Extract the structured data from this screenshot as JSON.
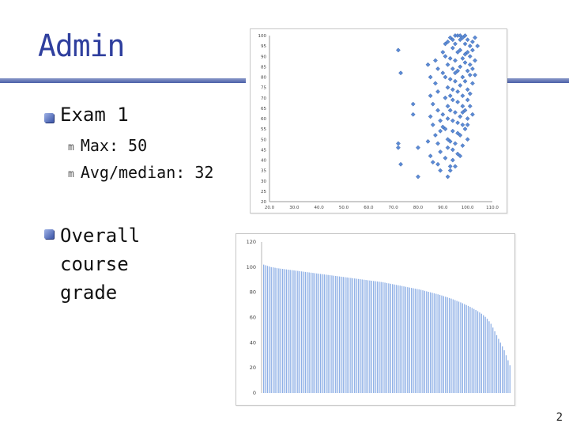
{
  "slide": {
    "title": "Admin",
    "bullets": [
      {
        "label": "Exam 1",
        "sub": [
          {
            "marker": "m",
            "text": "Max: 50"
          },
          {
            "marker": "m",
            "text": "Avg/median: 32"
          }
        ]
      },
      {
        "label": "Overall course grade",
        "sub": []
      }
    ],
    "page_number": "2"
  },
  "colors": {
    "title": "#2f3f9e",
    "rule": "#4a5fa8",
    "point": "#5b8bd6",
    "bar": "#8fb0e6"
  },
  "chart_data": [
    {
      "type": "scatter",
      "title": "",
      "xlabel": "",
      "ylabel": "",
      "xlim": [
        20,
        110
      ],
      "ylim": [
        20,
        100
      ],
      "x_ticks": [
        "20.0",
        "30.0",
        "40.0",
        "50.0",
        "60.0",
        "70.0",
        "80.0",
        "90.0",
        "100.0",
        "110.0"
      ],
      "y_ticks": [
        "20",
        "25",
        "30",
        "35",
        "40",
        "45",
        "50",
        "55",
        "60",
        "65",
        "70",
        "75",
        "80",
        "85",
        "90",
        "95",
        "100"
      ],
      "points": [
        [
          72,
          93
        ],
        [
          73,
          82
        ],
        [
          72,
          48
        ],
        [
          72,
          46
        ],
        [
          73,
          38
        ],
        [
          80,
          46
        ],
        [
          80,
          32
        ],
        [
          78,
          67
        ],
        [
          78,
          62
        ],
        [
          84,
          86
        ],
        [
          85,
          80
        ],
        [
          85,
          71
        ],
        [
          86,
          67
        ],
        [
          85,
          61
        ],
        [
          86,
          57
        ],
        [
          87,
          52
        ],
        [
          84,
          49
        ],
        [
          85,
          42
        ],
        [
          86,
          39
        ],
        [
          87,
          88
        ],
        [
          88,
          84
        ],
        [
          87,
          77
        ],
        [
          88,
          73
        ],
        [
          88,
          64
        ],
        [
          89,
          59
        ],
        [
          89,
          54
        ],
        [
          88,
          48
        ],
        [
          89,
          44
        ],
        [
          88,
          38
        ],
        [
          89,
          35
        ],
        [
          90,
          62
        ],
        [
          90,
          56
        ],
        [
          90,
          82
        ],
        [
          90,
          92
        ],
        [
          91,
          96
        ],
        [
          91,
          90
        ],
        [
          92,
          86
        ],
        [
          91,
          80
        ],
        [
          92,
          75
        ],
        [
          91,
          70
        ],
        [
          92,
          66
        ],
        [
          92,
          60
        ],
        [
          91,
          55
        ],
        [
          92,
          50
        ],
        [
          92,
          46
        ],
        [
          91,
          41
        ],
        [
          93,
          37
        ],
        [
          92,
          32
        ],
        [
          93,
          99
        ],
        [
          94,
          94
        ],
        [
          93,
          89
        ],
        [
          94,
          84
        ],
        [
          93,
          79
        ],
        [
          94,
          74
        ],
        [
          94,
          69
        ],
        [
          93,
          64
        ],
        [
          94,
          59
        ],
        [
          94,
          54
        ],
        [
          93,
          49
        ],
        [
          94,
          45
        ],
        [
          94,
          40
        ],
        [
          93,
          35
        ],
        [
          95,
          100
        ],
        [
          95,
          96
        ],
        [
          96,
          92
        ],
        [
          95,
          88
        ],
        [
          96,
          83
        ],
        [
          95,
          78
        ],
        [
          96,
          73
        ],
        [
          96,
          68
        ],
        [
          95,
          63
        ],
        [
          96,
          58
        ],
        [
          96,
          53
        ],
        [
          95,
          48
        ],
        [
          96,
          43
        ],
        [
          95,
          37
        ],
        [
          97,
          98
        ],
        [
          97,
          93
        ],
        [
          98,
          89
        ],
        [
          97,
          85
        ],
        [
          98,
          80
        ],
        [
          97,
          76
        ],
        [
          98,
          71
        ],
        [
          98,
          66
        ],
        [
          97,
          61
        ],
        [
          98,
          57
        ],
        [
          97,
          52
        ],
        [
          98,
          47
        ],
        [
          97,
          42
        ],
        [
          99,
          100
        ],
        [
          99,
          96
        ],
        [
          100,
          92
        ],
        [
          99,
          87
        ],
        [
          100,
          83
        ],
        [
          99,
          78
        ],
        [
          100,
          74
        ],
        [
          100,
          69
        ],
        [
          99,
          64
        ],
        [
          100,
          60
        ],
        [
          99,
          55
        ],
        [
          100,
          98
        ],
        [
          101,
          95
        ],
        [
          101,
          90
        ],
        [
          101,
          86
        ],
        [
          101,
          81
        ],
        [
          102,
          77
        ],
        [
          101,
          72
        ],
        [
          102,
          97
        ],
        [
          102,
          93
        ],
        [
          103,
          99
        ],
        [
          103,
          88
        ],
        [
          102,
          84
        ],
        [
          104,
          95
        ],
        [
          103,
          81
        ],
        [
          101,
          66
        ],
        [
          102,
          62
        ],
        [
          100,
          57
        ],
        [
          98,
          99
        ],
        [
          96,
          100
        ],
        [
          94,
          98
        ],
        [
          92,
          97
        ],
        [
          97,
          100
        ],
        [
          99,
          91
        ],
        [
          95,
          82
        ],
        [
          93,
          71
        ],
        [
          98,
          63
        ],
        [
          100,
          50
        ]
      ]
    },
    {
      "type": "bar",
      "title": "",
      "xlabel": "",
      "ylabel": "",
      "ylim": [
        0,
        120
      ],
      "y_ticks": [
        "0",
        "20",
        "40",
        "60",
        "80",
        "100",
        "120"
      ],
      "values": [
        102,
        101.5,
        101,
        100.5,
        100,
        99.8,
        99.5,
        99.2,
        99,
        98.8,
        98.6,
        98.4,
        98.2,
        98,
        97.8,
        97.6,
        97.4,
        97.2,
        97,
        96.8,
        96.6,
        96.4,
        96.2,
        96,
        95.8,
        95.6,
        95.4,
        95.2,
        95,
        94.8,
        94.6,
        94.4,
        94.2,
        94,
        93.8,
        93.6,
        93.4,
        93.2,
        93,
        92.8,
        92.6,
        92.4,
        92.2,
        92,
        91.8,
        91.6,
        91.4,
        91.2,
        91,
        90.8,
        90.6,
        90.4,
        90.2,
        90,
        89.8,
        89.6,
        89.4,
        89.2,
        89,
        88.8,
        88.6,
        88.4,
        88.2,
        88,
        87.7,
        87.4,
        87.1,
        86.8,
        86.5,
        86.2,
        85.9,
        85.6,
        85.3,
        85,
        84.7,
        84.4,
        84.1,
        83.8,
        83.5,
        83.2,
        82.9,
        82.6,
        82.3,
        82,
        81.6,
        81.2,
        80.8,
        80.4,
        80,
        79.6,
        79.2,
        78.8,
        78.4,
        78,
        77.5,
        77,
        76.5,
        76,
        75.5,
        75,
        74.4,
        73.8,
        73.2,
        72.6,
        72,
        71.3,
        70.6,
        69.9,
        69.2,
        68.4,
        67.6,
        66.8,
        66,
        65,
        64,
        63,
        61.8,
        60.5,
        59,
        57,
        55,
        52,
        49,
        46,
        43,
        40,
        37,
        34,
        30,
        26,
        22
      ]
    }
  ]
}
